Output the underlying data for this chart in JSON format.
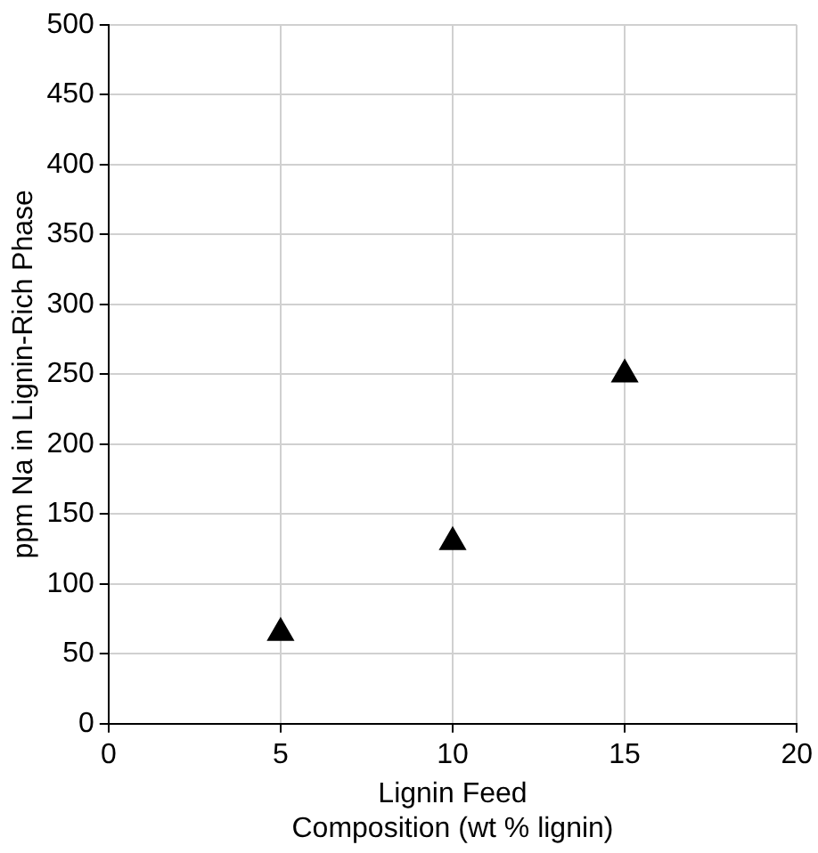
{
  "chart_data": {
    "type": "scatter",
    "xlabel": "Lignin Feed\nComposition (wt % lignin)",
    "ylabel": "ppm Na in Lignin-Rich Phase",
    "x": [
      5,
      10,
      15
    ],
    "series": [
      {
        "color": "#000000",
        "values": [
          65,
          130,
          250
        ]
      }
    ],
    "xlim": [
      0,
      20
    ],
    "xticks": [
      0,
      5,
      10,
      15,
      20
    ],
    "ylim": [
      0,
      500
    ],
    "yticks": [
      0,
      50,
      100,
      150,
      200,
      250,
      300,
      350,
      400,
      450,
      500
    ],
    "grid": true,
    "legend": false,
    "marker": "triangle"
  }
}
